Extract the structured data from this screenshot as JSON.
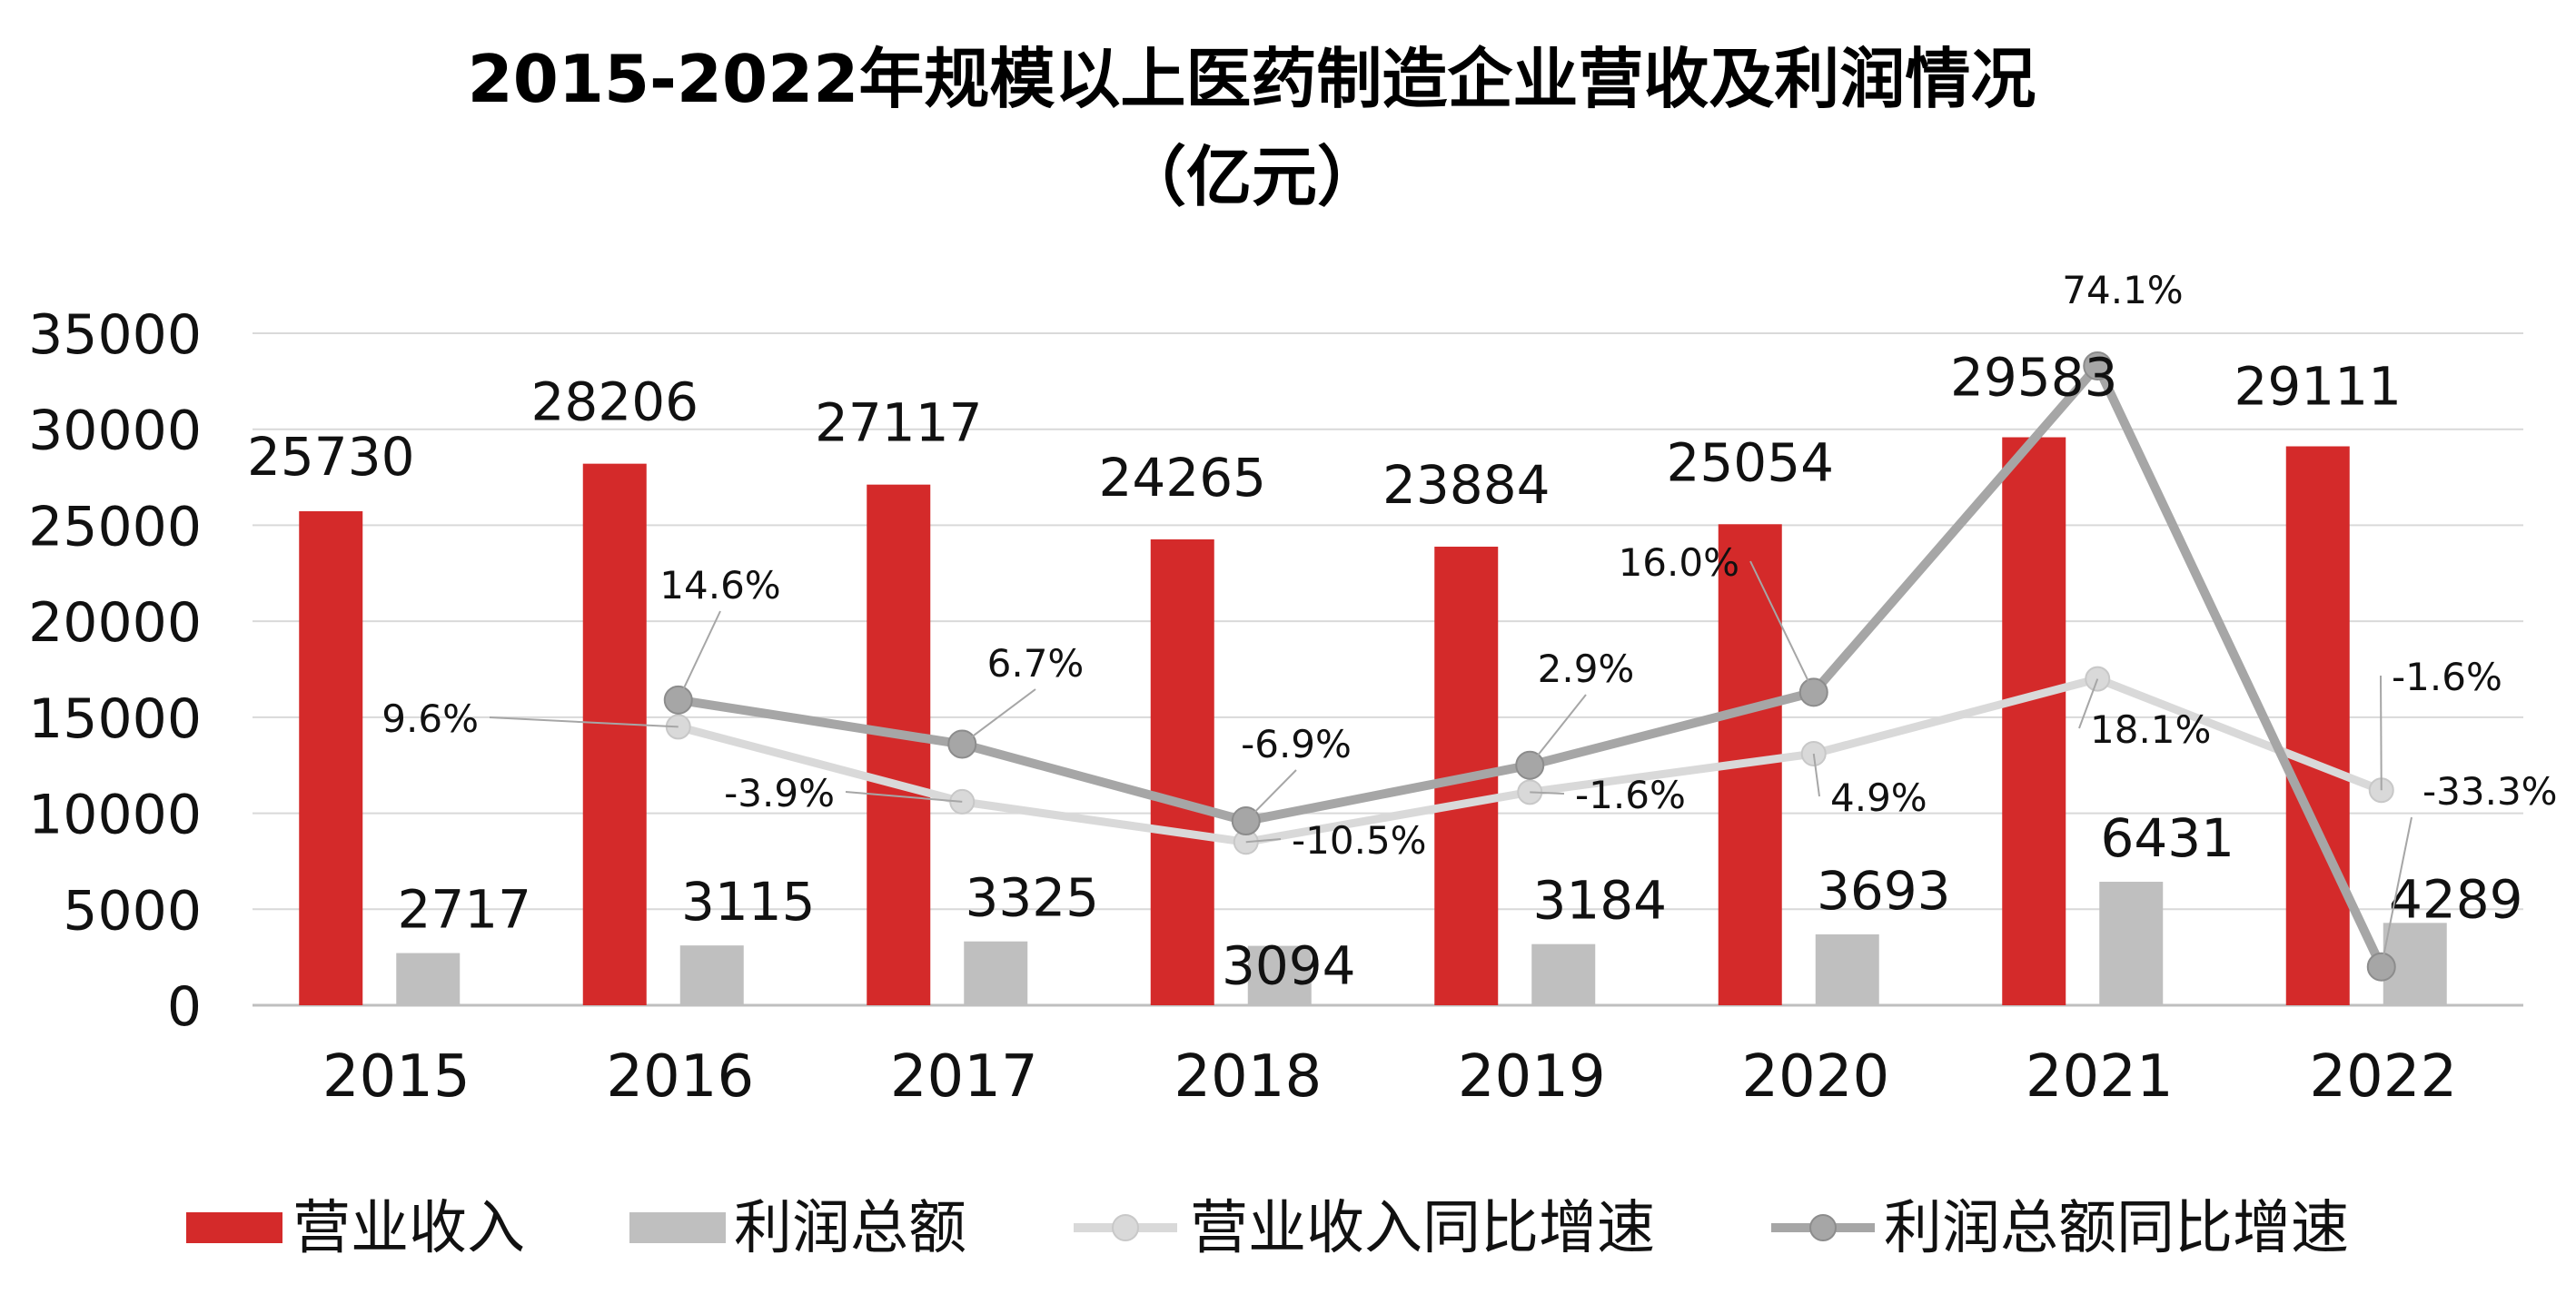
{
  "chart_data": {
    "type": "bar",
    "title_line1": "2015-2022年规模以上医药制造企业营收及利润情况",
    "title_line2": "（亿元）",
    "categories": [
      "2015",
      "2016",
      "2017",
      "2018",
      "2019",
      "2020",
      "2021",
      "2022"
    ],
    "ylim": [
      0,
      35000
    ],
    "yticks": [
      "0",
      "5000",
      "10000",
      "15000",
      "20000",
      "25000",
      "30000",
      "35000"
    ],
    "grid": true,
    "legend_position": "bottom",
    "series": [
      {
        "name": "营业收入",
        "kind": "bar",
        "values": [
          25730,
          28206,
          27117,
          24265,
          23884,
          25054,
          29583,
          29111
        ],
        "labels": [
          "25730",
          "28206",
          "27117",
          "24265",
          "23884",
          "25054",
          "29583",
          "29111"
        ],
        "color": "#d42a2a"
      },
      {
        "name": "利润总额",
        "kind": "bar",
        "values": [
          2717,
          3115,
          3325,
          3094,
          3184,
          3693,
          6431,
          4289
        ],
        "labels": [
          "2717",
          "3115",
          "3325",
          "3094",
          "3184",
          "3693",
          "6431",
          "4289"
        ],
        "color": "#bfbfbf"
      },
      {
        "name": "营业收入同比增速",
        "kind": "line",
        "plot_values": [
          null,
          14500,
          10600,
          8500,
          11100,
          13100,
          17000,
          11200
        ],
        "labels": [
          "",
          "9.6%",
          "-3.9%",
          "-10.5%",
          "-1.6%",
          "4.9%",
          "18.1%",
          "-1.6%"
        ],
        "color": "#d9d9d9"
      },
      {
        "name": "利润总额同比增速",
        "kind": "line",
        "plot_values": [
          null,
          15900,
          13600,
          9600,
          12500,
          16300,
          33300,
          2000
        ],
        "labels": [
          "",
          "14.6%",
          "6.7%",
          "-6.9%",
          "2.9%",
          "16.0%",
          "74.1%",
          "-33.3%"
        ],
        "color": "#a6a6a6"
      }
    ]
  }
}
